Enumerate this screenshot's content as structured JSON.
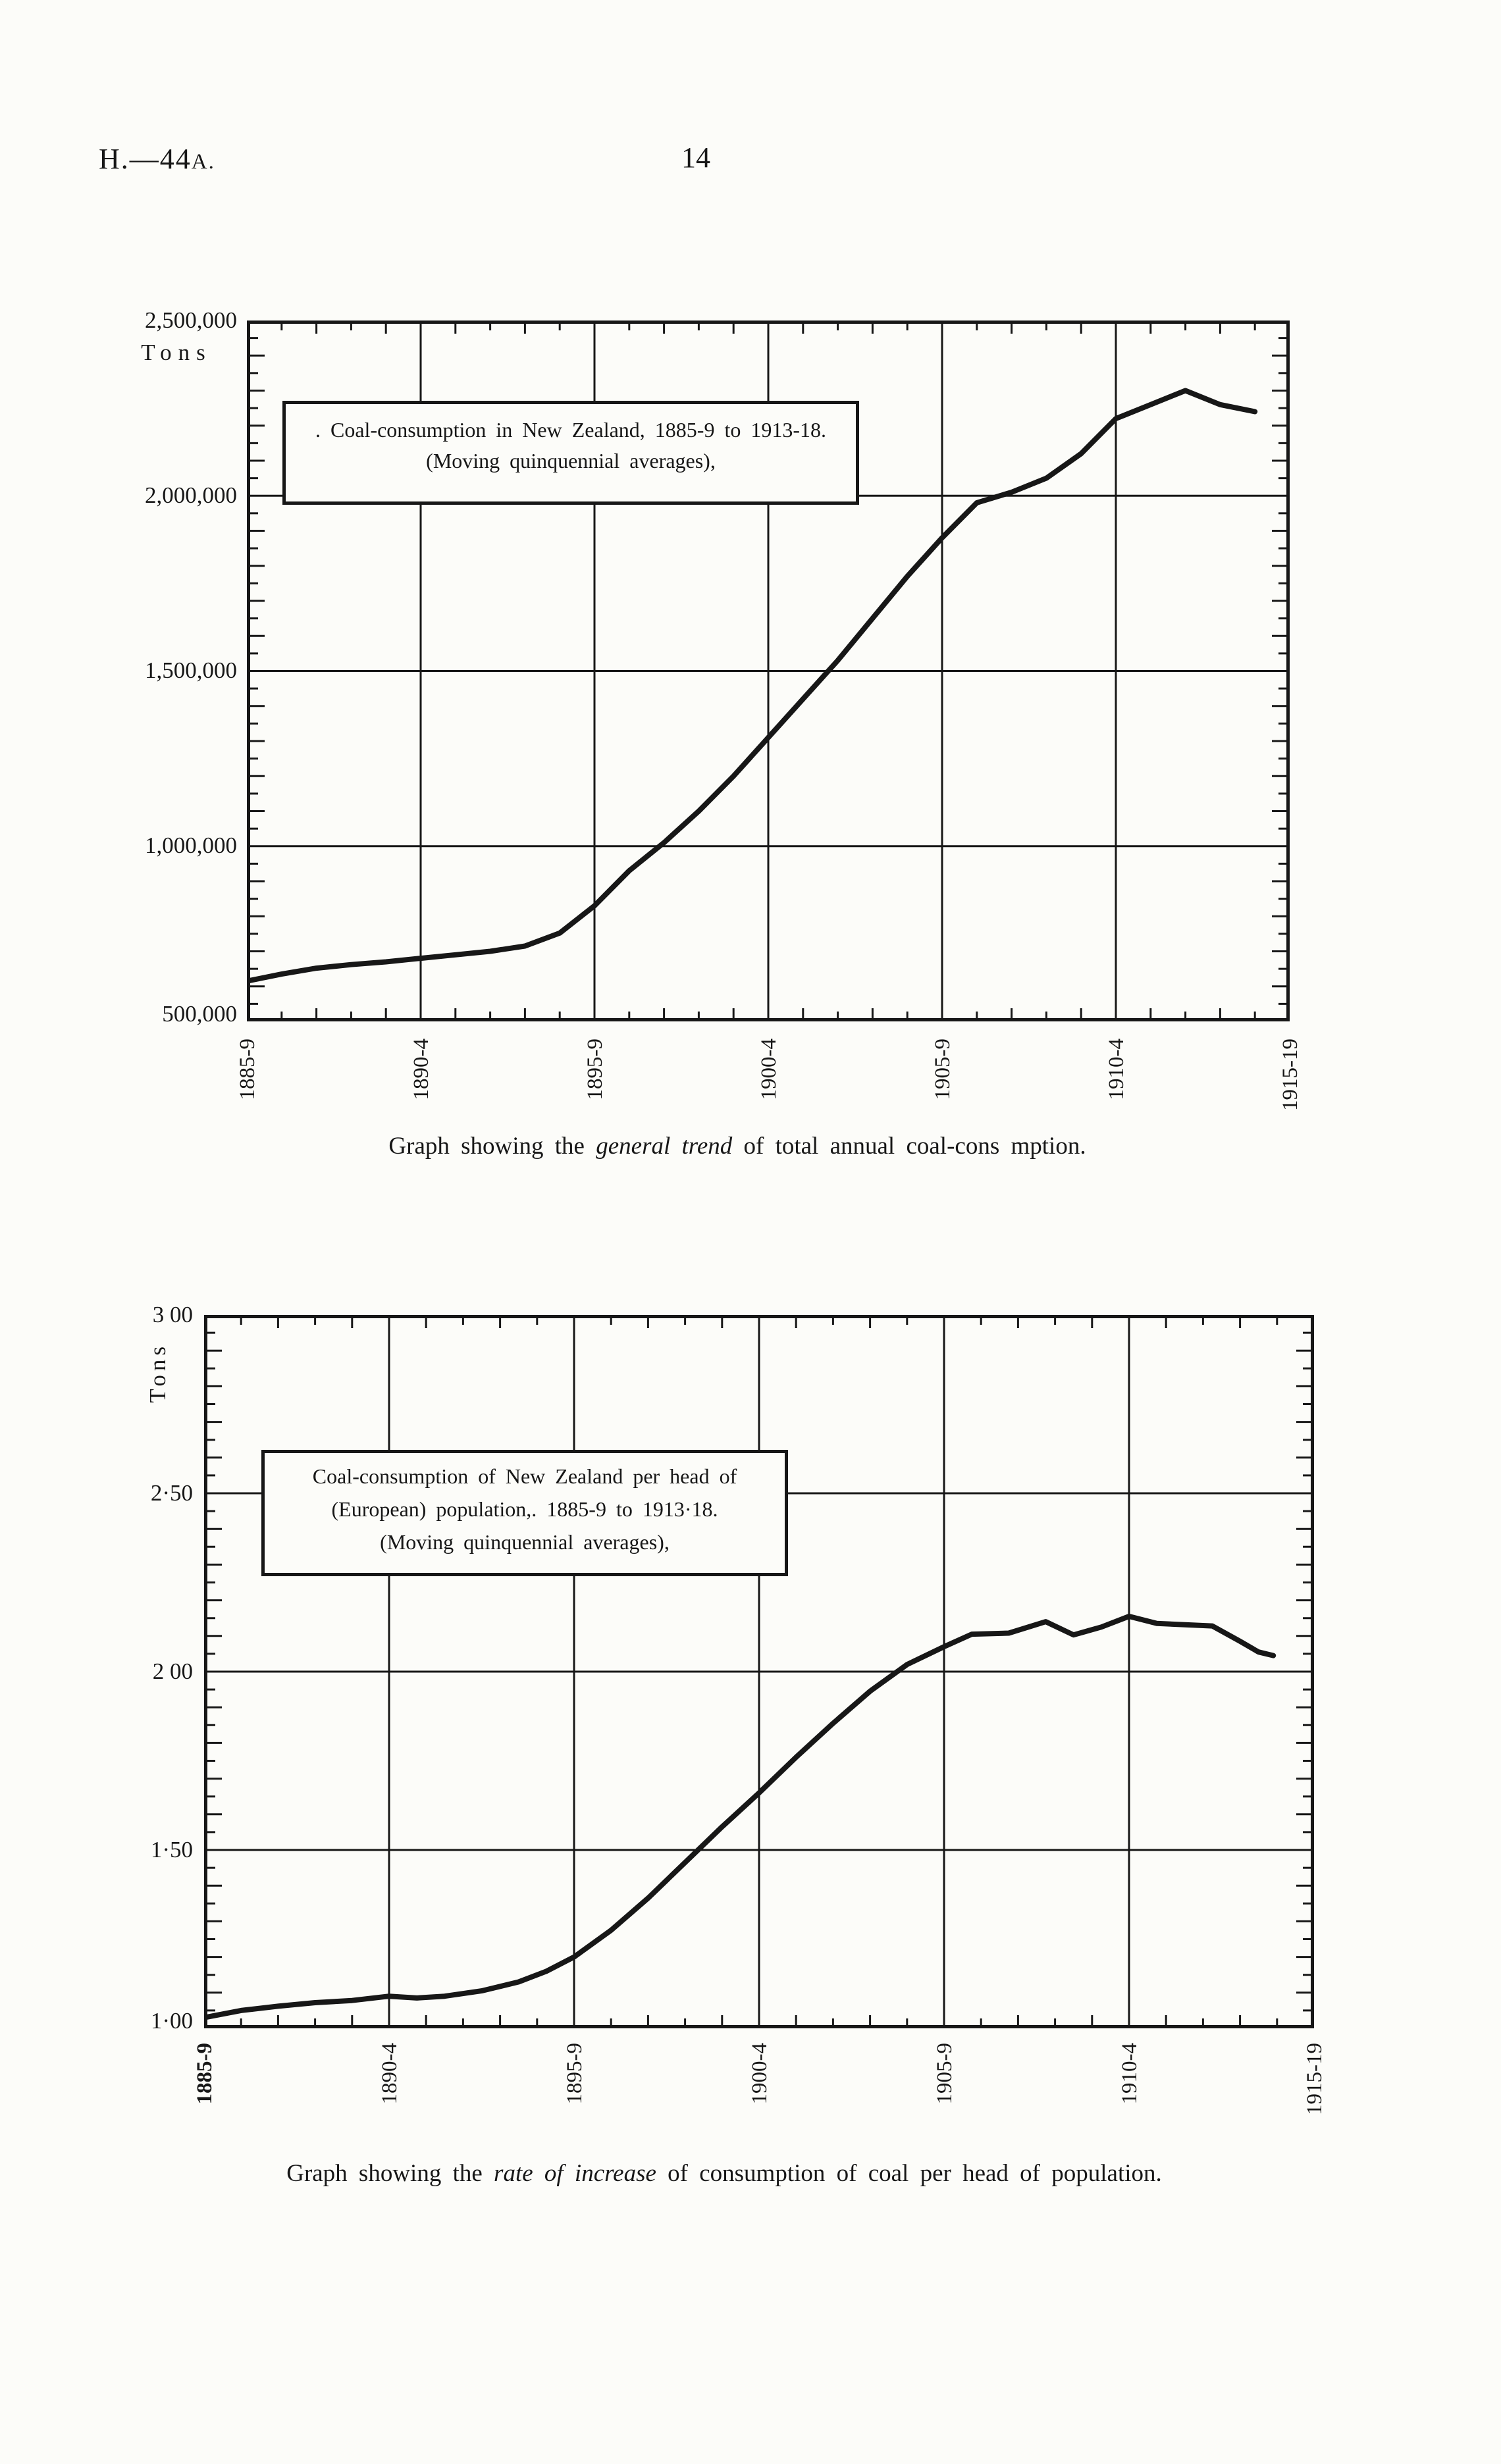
{
  "header": {
    "code_main": "H.—44",
    "code_small": "A.",
    "page_number": "14"
  },
  "ink_color": "#171717",
  "paper_color": "#fcfcf9",
  "chart_data": [
    {
      "type": "line",
      "title": ". Coal-consumption in New Zealand, 1885-9 to 1913-18.",
      "subtitle": "(Moving quinquennial averages),",
      "ylabel": "Tons",
      "y_tick_labels": [
        "2,500,000",
        "2,000,000",
        "1,500,000",
        "1,000,000",
        "500,000"
      ],
      "x_tick_labels": [
        "1885-9",
        "1890-4",
        "1895-9",
        "1900-4",
        "1905-9",
        "1910-4",
        "1915-19"
      ],
      "ylim": [
        500000,
        2500000
      ],
      "xlim": [
        0,
        6
      ],
      "y_major_step": 500000,
      "y_minor_step": 50000,
      "x_minor_step": 0.2,
      "grid": true,
      "legend": "none",
      "caption": {
        "prefix": "Graph showing the ",
        "italic": "general trend",
        "suffix": " of total annual coal-cons mption."
      },
      "points": [
        [
          0,
          615000
        ],
        [
          0.2,
          635000
        ],
        [
          0.4,
          652000
        ],
        [
          0.6,
          662000
        ],
        [
          0.8,
          670000
        ],
        [
          1,
          680000
        ],
        [
          1.2,
          690000
        ],
        [
          1.4,
          700000
        ],
        [
          1.6,
          715000
        ],
        [
          1.8,
          752000
        ],
        [
          2,
          830000
        ],
        [
          2.2,
          930000
        ],
        [
          2.4,
          1010000
        ],
        [
          2.6,
          1100000
        ],
        [
          2.8,
          1200000
        ],
        [
          3,
          1310000
        ],
        [
          3.2,
          1420000
        ],
        [
          3.4,
          1530000
        ],
        [
          3.6,
          1650000
        ],
        [
          3.8,
          1770000
        ],
        [
          4,
          1880000
        ],
        [
          4.2,
          1980000
        ],
        [
          4.4,
          2010000
        ],
        [
          4.6,
          2050000
        ],
        [
          4.8,
          2120000
        ],
        [
          5,
          2220000
        ],
        [
          5.2,
          2260000
        ],
        [
          5.4,
          2300000
        ],
        [
          5.6,
          2260000
        ],
        [
          5.8,
          2240000
        ]
      ]
    },
    {
      "type": "line",
      "title": "Coal-consumption of New Zealand per head of",
      "title_line2": "(European) population,. 1885-9 to 1913·18.",
      "subtitle": "(Moving quinquennial averages),",
      "ylabel": "Tons",
      "y_tick_labels": [
        "3 00",
        "2·50",
        "2 00",
        "1·50",
        "1·00"
      ],
      "x_tick_labels": [
        "1885-9",
        "1890-4",
        "1895-9",
        "1900-4",
        "1905-9",
        "1910-4",
        "1915-19"
      ],
      "ylim": [
        1.0,
        3.0
      ],
      "xlim": [
        0,
        6
      ],
      "y_major_step": 0.5,
      "y_minor_step": 0.05,
      "x_minor_step": 0.2,
      "grid": true,
      "legend": "none",
      "caption": {
        "prefix": "Graph showing the ",
        "italic": "rate of increase",
        "suffix": " of consumption of coal per head of population."
      },
      "points": [
        [
          0,
          1.03
        ],
        [
          0.2,
          1.05
        ],
        [
          0.4,
          1.062
        ],
        [
          0.6,
          1.072
        ],
        [
          0.8,
          1.078
        ],
        [
          1,
          1.09
        ],
        [
          1.15,
          1.085
        ],
        [
          1.3,
          1.09
        ],
        [
          1.5,
          1.105
        ],
        [
          1.7,
          1.13
        ],
        [
          1.85,
          1.16
        ],
        [
          2,
          1.2
        ],
        [
          2.2,
          1.275
        ],
        [
          2.4,
          1.365
        ],
        [
          2.6,
          1.465
        ],
        [
          2.8,
          1.565
        ],
        [
          3,
          1.66
        ],
        [
          3.2,
          1.76
        ],
        [
          3.4,
          1.855
        ],
        [
          3.6,
          1.945
        ],
        [
          3.8,
          2.02
        ],
        [
          4,
          2.07
        ],
        [
          4.15,
          2.105
        ],
        [
          4.35,
          2.108
        ],
        [
          4.55,
          2.14
        ],
        [
          4.7,
          2.103
        ],
        [
          4.85,
          2.125
        ],
        [
          5,
          2.155
        ],
        [
          5.15,
          2.135
        ],
        [
          5.45,
          2.128
        ],
        [
          5.6,
          2.085
        ],
        [
          5.7,
          2.055
        ],
        [
          5.78,
          2.045
        ]
      ]
    }
  ]
}
